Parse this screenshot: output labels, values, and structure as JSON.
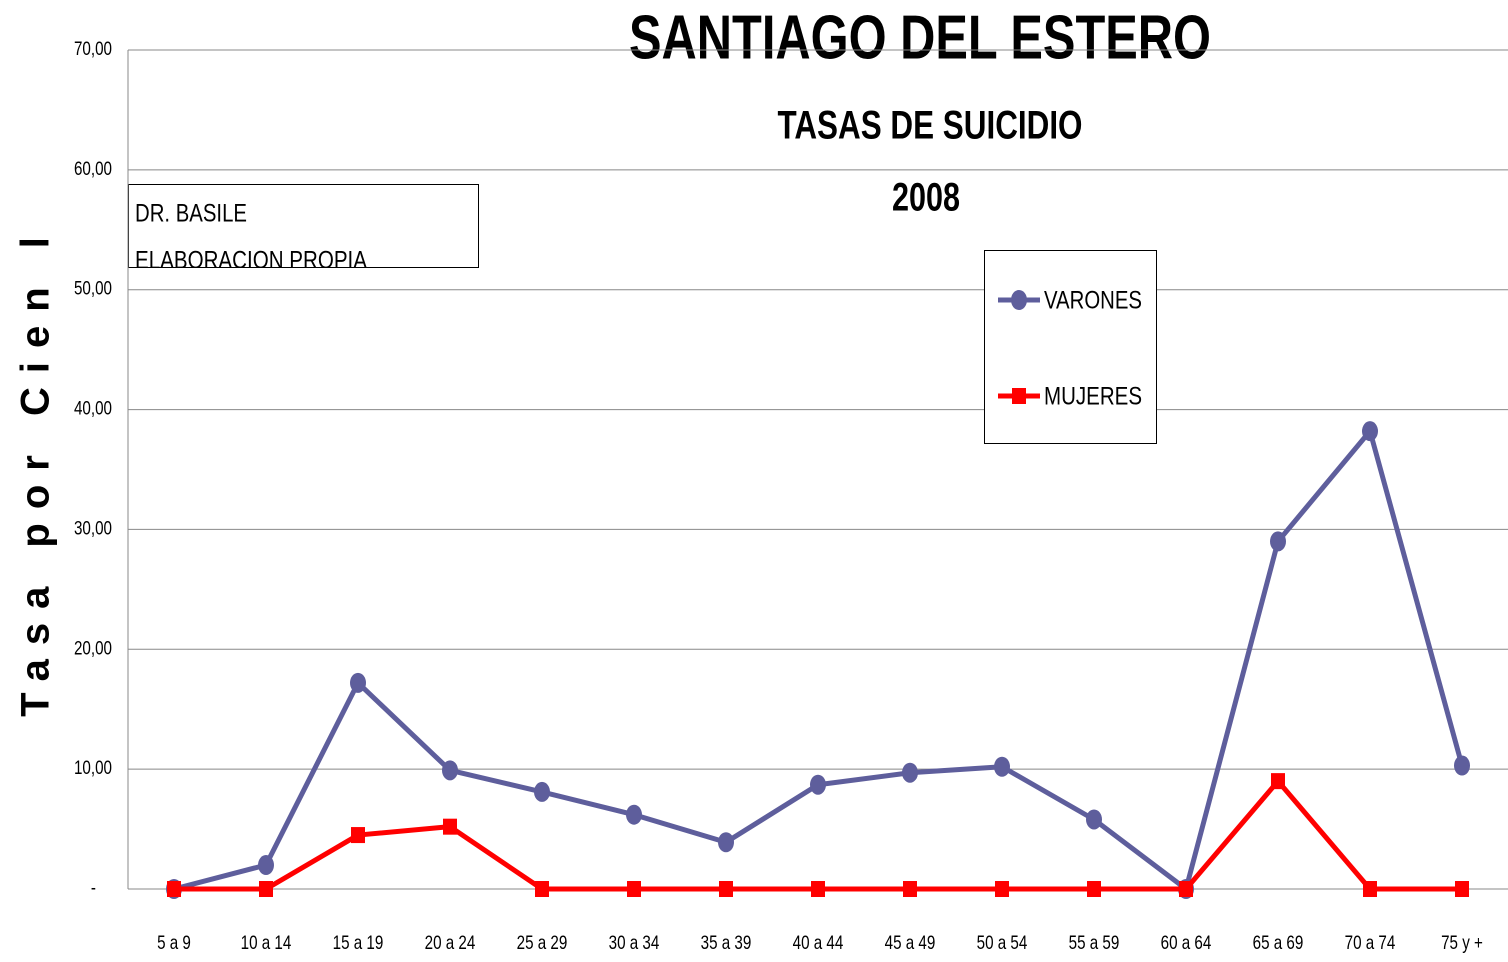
{
  "chart_data": {
    "type": "line",
    "title": "SANTIAGO DEL ESTERO",
    "subtitle": "TASAS DE SUICIDIO",
    "year_label": "2008",
    "y_label": "Tasa por Cien l",
    "annotations": [
      "DR. BASILE",
      "ELABORACION PROPIA"
    ],
    "categories": [
      "5 a 9",
      "10 a 14",
      "15 a 19",
      "20 a 24",
      "25 a 29",
      "30 a 34",
      "35 a 39",
      "40 a 44",
      "45 a 49",
      "50 a 54",
      "55 a 59",
      "60 a 64",
      "65 a 69",
      "70 a 74",
      "75 y +"
    ],
    "series": [
      {
        "name": "VARONES",
        "color": "#5e5e9c",
        "marker": "circle",
        "values": [
          0,
          2.0,
          17.2,
          9.9,
          8.1,
          6.2,
          3.9,
          8.7,
          9.7,
          10.2,
          5.8,
          0,
          29.0,
          38.2,
          10.3
        ]
      },
      {
        "name": "MUJERES",
        "color": "#ff0000",
        "marker": "square",
        "values": [
          0,
          0,
          4.5,
          5.2,
          0,
          0,
          0,
          0,
          0,
          0,
          0,
          0,
          9.0,
          0,
          0
        ]
      }
    ],
    "ylim": [
      0,
      70
    ],
    "yticks": [
      {
        "value": 0,
        "label": "-"
      },
      {
        "value": 10,
        "label": "10,00"
      },
      {
        "value": 20,
        "label": "20,00"
      },
      {
        "value": 30,
        "label": "30,00"
      },
      {
        "value": 40,
        "label": "40,00"
      },
      {
        "value": 50,
        "label": "50,00"
      },
      {
        "value": 60,
        "label": "60,00"
      },
      {
        "value": 70,
        "label": "70,00"
      }
    ],
    "grid": true
  }
}
